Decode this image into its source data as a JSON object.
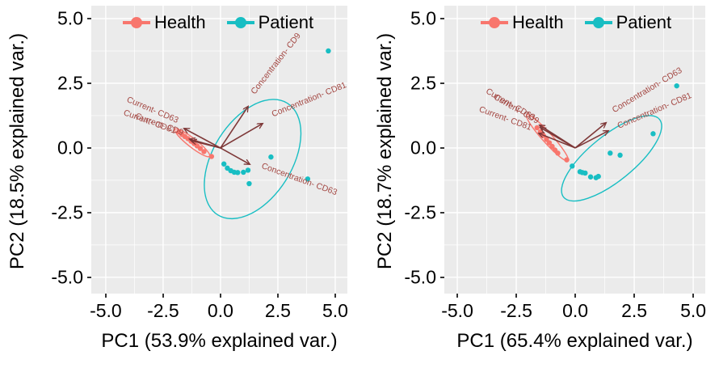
{
  "figure": {
    "background": "#FFFFFF",
    "panel_background": "#EBEBEB",
    "grid_color": "#FFFFFF",
    "tick_mark_color": "#333333",
    "arrow_color": "#7E3838",
    "arrow_label_color": "#A34742"
  },
  "legend": {
    "items": [
      {
        "label": "Health",
        "color": "#F8766D"
      },
      {
        "label": "Patient",
        "color": "#18BEC3"
      }
    ]
  },
  "chart_data": [
    {
      "type": "scatter",
      "subtype": "pca-biplot",
      "title": "",
      "xlabel": "PC1 (53.9% explained var.)",
      "ylabel": "PC2 (18.5% explained var.)",
      "xlim": [
        -5.63,
        5.53
      ],
      "ylim": [
        -5.63,
        5.5
      ],
      "x_ticks": {
        "values": [
          -5,
          -2.5,
          0,
          2.5,
          5
        ],
        "labels": [
          "-5.0",
          "-2.5",
          "0.0",
          "2.5",
          "5.0"
        ]
      },
      "y_ticks": {
        "values": [
          -5,
          -2.5,
          0,
          2.5,
          5
        ],
        "labels": [
          "-5.0",
          "-2.5",
          "0.0",
          "2.5",
          "5.0"
        ]
      },
      "grid_minor": [
        -3.75,
        -1.25,
        1.25,
        3.75
      ],
      "legend_position": "top-inside",
      "series": [
        {
          "name": "Health",
          "color": "#F8766D",
          "points": [
            [
              -1.82,
              0.62
            ],
            [
              -1.68,
              0.52
            ],
            [
              -1.55,
              0.44
            ],
            [
              -1.42,
              0.36
            ],
            [
              -1.28,
              0.26
            ],
            [
              -1.15,
              0.17
            ],
            [
              -1.02,
              0.08
            ],
            [
              -0.88,
              -0.02
            ],
            [
              -0.72,
              -0.14
            ],
            [
              -0.39,
              -0.33
            ]
          ]
        },
        {
          "name": "Patient",
          "color": "#18BEC3",
          "points": [
            [
              4.7,
              3.75
            ],
            [
              2.2,
              -0.35
            ],
            [
              3.8,
              -1.2
            ],
            [
              0.15,
              -0.62
            ],
            [
              0.3,
              -0.78
            ],
            [
              0.45,
              -0.88
            ],
            [
              0.6,
              -0.94
            ],
            [
              0.75,
              -0.95
            ],
            [
              1.0,
              -0.94
            ],
            [
              1.2,
              -0.86
            ],
            [
              1.25,
              -1.38
            ]
          ]
        }
      ],
      "ellipses": [
        {
          "series": "Health",
          "cx": -1.23,
          "cy": 0.2,
          "a": 0.9,
          "b": 0.18,
          "angle_deg": -38
        },
        {
          "series": "Patient",
          "cx": 1.4,
          "cy": -0.43,
          "a": 2.7,
          "b": 1.62,
          "angle_deg": 58
        }
      ],
      "arrows": [
        {
          "label": "Concentration- CD9",
          "x": 1.2,
          "y": 1.6,
          "label_x": 2.5,
          "label_y": 3.2,
          "label_angle_deg": -52
        },
        {
          "label": "Concentration- CD81",
          "x": 1.83,
          "y": 0.94,
          "label_x": 3.9,
          "label_y": 1.78,
          "label_angle_deg": -22
        },
        {
          "label": "Concentration- CD63",
          "x": 1.27,
          "y": -0.63,
          "label_x": 3.4,
          "label_y": -1.3,
          "label_angle_deg": 20
        },
        {
          "label": "Current- CD63",
          "x": -1.58,
          "y": 0.75,
          "label_x": -3.0,
          "label_y": 1.38,
          "label_angle_deg": 23
        },
        {
          "label": "Current- CD81",
          "x": -1.34,
          "y": 0.34,
          "label_x": -3.12,
          "label_y": 0.92,
          "label_angle_deg": 20
        },
        {
          "label": "Current- CD9",
          "x": -1.27,
          "y": 0.28,
          "label_x": -2.7,
          "label_y": 0.82,
          "label_angle_deg": 20
        }
      ]
    },
    {
      "type": "scatter",
      "subtype": "pca-biplot",
      "title": "",
      "xlabel": "PC1 (65.4% explained var.)",
      "ylabel": "PC2 (18.7% explained var.)",
      "xlim": [
        -5.55,
        5.51
      ],
      "ylim": [
        -5.63,
        5.5
      ],
      "x_ticks": {
        "values": [
          -5,
          -2.5,
          0,
          2.5,
          5
        ],
        "labels": [
          "-5.0",
          "-2.5",
          "0.0",
          "2.5",
          "5.0"
        ]
      },
      "y_ticks": {
        "values": [
          -5,
          -2.5,
          0,
          2.5,
          5
        ],
        "labels": [
          "-5.0",
          "-2.5",
          "0.0",
          "2.5",
          "5.0"
        ]
      },
      "grid_minor": [
        -3.75,
        -1.25,
        1.25,
        3.75
      ],
      "legend_position": "top-inside",
      "series": [
        {
          "name": "Health",
          "color": "#F8766D",
          "points": [
            [
              -1.62,
              0.78
            ],
            [
              -1.48,
              0.62
            ],
            [
              -1.35,
              0.48
            ],
            [
              -1.22,
              0.33
            ],
            [
              -1.1,
              0.2
            ],
            [
              -0.98,
              0.06
            ],
            [
              -0.86,
              -0.08
            ],
            [
              -0.74,
              -0.2
            ],
            [
              -0.36,
              -0.46
            ]
          ]
        },
        {
          "name": "Patient",
          "color": "#18BEC3",
          "points": [
            [
              4.3,
              2.4
            ],
            [
              3.3,
              0.55
            ],
            [
              1.48,
              -0.2
            ],
            [
              1.9,
              -0.28
            ],
            [
              -0.13,
              -0.7
            ],
            [
              0.2,
              -0.92
            ],
            [
              0.3,
              -0.95
            ],
            [
              0.42,
              -0.97
            ],
            [
              0.65,
              -1.12
            ],
            [
              0.88,
              -1.15
            ],
            [
              0.98,
              -1.1
            ]
          ]
        }
      ],
      "ellipses": [
        {
          "series": "Health",
          "cx": -1.18,
          "cy": 0.39,
          "a": 1.25,
          "b": 0.2,
          "angle_deg": -48
        },
        {
          "series": "Patient",
          "cx": 1.54,
          "cy": -0.4,
          "a": 2.5,
          "b": 0.92,
          "angle_deg": 39
        }
      ],
      "arrows": [
        {
          "label": "Concentration- CD63",
          "x": 1.3,
          "y": 0.97,
          "label_x": 3.1,
          "label_y": 2.15,
          "label_angle_deg": -31
        },
        {
          "label": "Concentration- CD81",
          "x": 1.4,
          "y": 0.66,
          "label_x": 3.4,
          "label_y": 1.35,
          "label_angle_deg": -23
        },
        {
          "label": "Current- CD63",
          "x": -1.51,
          "y": 0.88,
          "label_x": -2.8,
          "label_y": 1.6,
          "label_angle_deg": 30
        },
        {
          "label": "Current- CD9",
          "x": -1.47,
          "y": 0.78,
          "label_x": -2.55,
          "label_y": 1.42,
          "label_angle_deg": 30
        },
        {
          "label": "Current- CD81",
          "x": -1.54,
          "y": 0.56,
          "label_x": -3.0,
          "label_y": 1.05,
          "label_angle_deg": 20
        }
      ]
    }
  ]
}
